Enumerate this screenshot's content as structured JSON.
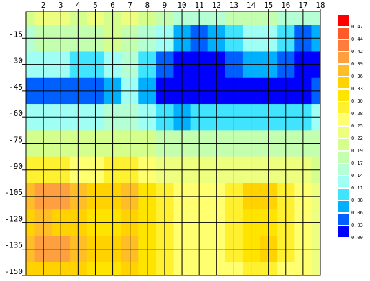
{
  "chart_data": {
    "type": "heatmap",
    "x": [
      1,
      2,
      3,
      4,
      5,
      6,
      7,
      8,
      9,
      10,
      11,
      12,
      13,
      14,
      15,
      16,
      17,
      18
    ],
    "y": [
      0,
      -15,
      -30,
      -45,
      -60,
      -75,
      -90,
      -105,
      -120,
      -135,
      -150
    ],
    "z": [
      [
        0.2,
        0.22,
        0.22,
        0.2,
        0.22,
        0.2,
        0.22,
        0.19,
        0.17,
        0.14,
        0.14,
        0.14,
        0.17,
        0.17,
        0.17,
        0.14,
        0.14,
        0.14
      ],
      [
        0.14,
        0.17,
        0.17,
        0.17,
        0.17,
        0.19,
        0.17,
        0.14,
        0.11,
        0.06,
        0.03,
        0.06,
        0.08,
        0.11,
        0.11,
        0.08,
        0.03,
        0.06
      ],
      [
        0.11,
        0.11,
        0.11,
        0.08,
        0.08,
        0.11,
        0.14,
        0.08,
        0.03,
        0.0,
        0.0,
        0.0,
        0.03,
        0.06,
        0.06,
        0.03,
        0.0,
        0.0
      ],
      [
        0.03,
        0.03,
        0.03,
        0.03,
        0.03,
        0.06,
        0.11,
        0.06,
        0.0,
        0.0,
        0.0,
        0.0,
        0.0,
        0.0,
        0.0,
        0.0,
        0.0,
        0.03
      ],
      [
        0.11,
        0.11,
        0.11,
        0.11,
        0.11,
        0.14,
        0.14,
        0.11,
        0.08,
        0.06,
        0.08,
        0.08,
        0.08,
        0.08,
        0.08,
        0.08,
        0.08,
        0.11
      ],
      [
        0.19,
        0.19,
        0.19,
        0.19,
        0.19,
        0.19,
        0.19,
        0.19,
        0.17,
        0.17,
        0.17,
        0.17,
        0.17,
        0.17,
        0.17,
        0.17,
        0.17,
        0.17
      ],
      [
        0.28,
        0.28,
        0.28,
        0.25,
        0.25,
        0.28,
        0.28,
        0.25,
        0.22,
        0.22,
        0.22,
        0.22,
        0.22,
        0.22,
        0.22,
        0.22,
        0.22,
        0.19
      ],
      [
        0.36,
        0.39,
        0.39,
        0.36,
        0.33,
        0.33,
        0.36,
        0.3,
        0.28,
        0.25,
        0.25,
        0.25,
        0.28,
        0.33,
        0.33,
        0.28,
        0.25,
        0.22
      ],
      [
        0.33,
        0.36,
        0.33,
        0.33,
        0.3,
        0.3,
        0.33,
        0.3,
        0.28,
        0.25,
        0.25,
        0.25,
        0.28,
        0.3,
        0.3,
        0.28,
        0.25,
        0.22
      ],
      [
        0.36,
        0.39,
        0.39,
        0.36,
        0.33,
        0.33,
        0.36,
        0.3,
        0.28,
        0.25,
        0.25,
        0.25,
        0.28,
        0.3,
        0.33,
        0.28,
        0.25,
        0.22
      ],
      [
        0.33,
        0.33,
        0.33,
        0.33,
        0.3,
        0.3,
        0.33,
        0.3,
        0.28,
        0.25,
        0.25,
        0.25,
        0.25,
        0.28,
        0.28,
        0.25,
        0.25,
        0.22
      ]
    ],
    "xlim": [
      1,
      18
    ],
    "ylim": [
      0,
      -150
    ],
    "xticks": [
      2,
      3,
      4,
      5,
      6,
      7,
      8,
      9,
      10,
      11,
      12,
      13,
      14,
      15,
      16,
      17,
      18
    ],
    "yticks": [
      -15,
      -30,
      -45,
      -60,
      -75,
      -90,
      -105,
      -120,
      -135,
      -150
    ],
    "grid": true,
    "colorbar": {
      "ticks": [
        0.47,
        0.44,
        0.42,
        0.39,
        0.36,
        0.33,
        {
          "value": 0.3,
          "label": "0.30"
        },
        0.28,
        0.25,
        0.22,
        0.19,
        0.17,
        0.14,
        0.11,
        0.08,
        0.06,
        0.03,
        {
          "value": 0.0,
          "label": "0.00"
        }
      ],
      "colors": [
        "#ff0000",
        "#ff5a2a",
        "#ff7d3c",
        "#ffa040",
        "#ffbe28",
        "#ffd200",
        "#ffe400",
        "#fff030",
        "#ffff70",
        "#eeff80",
        "#d4ff8c",
        "#c4ffb0",
        "#b4ffd4",
        "#a0fff4",
        "#40e4ff",
        "#00b0ff",
        "#0060ff",
        "#0000ff"
      ]
    }
  }
}
